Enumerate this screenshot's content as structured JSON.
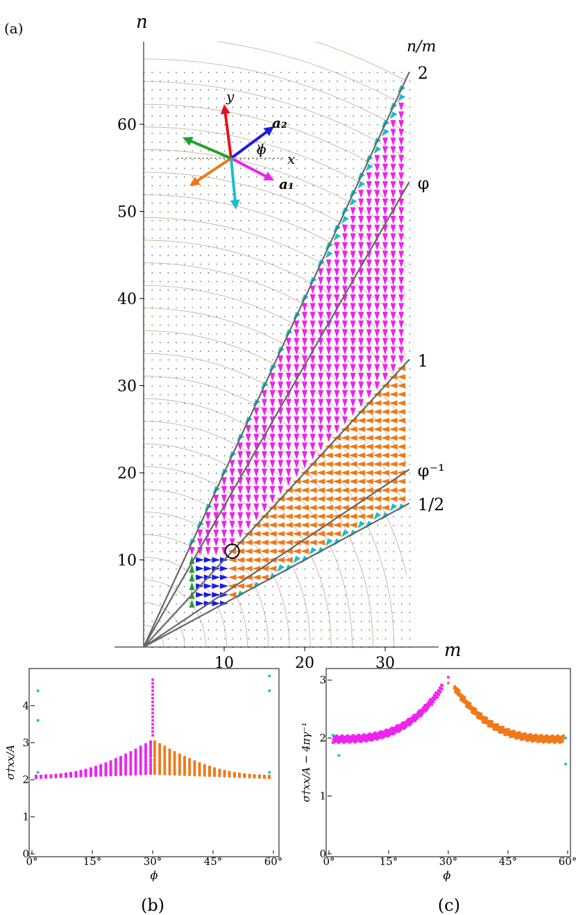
{
  "panels": {
    "a": {
      "label": "(a)",
      "xlabel": "m",
      "ylabel": "n",
      "x_ticks": [
        "10",
        "20",
        "30"
      ],
      "y_ticks": [
        "10",
        "20",
        "30",
        "40",
        "50",
        "60"
      ],
      "lines": [
        {
          "label": "2",
          "slope": 2
        },
        {
          "label": "φ",
          "slope": 1.618
        },
        {
          "label": "1",
          "slope": 1
        },
        {
          "label": "φ⁻¹",
          "slope": 0.618
        },
        {
          "label": "1/2",
          "slope": 0.5
        }
      ],
      "lines_header": "n/m",
      "marked_point": {
        "m": 11,
        "n": 11
      },
      "inset": {
        "labels": {
          "y": "y",
          "x": "x",
          "a2": "a₂",
          "a1": "a₁",
          "phi": "ϕ"
        },
        "arrow_colors": {
          "red": "#e8101a",
          "blue": "#1a1ae8",
          "magenta": "#ee22ee",
          "cyan": "#18c0c8",
          "orange": "#f07818",
          "green": "#22a02a"
        }
      }
    },
    "b": {
      "label": "(b)",
      "xlabel": "ϕ",
      "ylabel": "σ†xx/A",
      "x_ticks": [
        "0°",
        "15°",
        "30°",
        "45°",
        "60°"
      ],
      "y_ticks": [
        "0",
        "1",
        "2",
        "3",
        "4"
      ]
    },
    "c": {
      "label": "(c)",
      "xlabel": "ϕ",
      "ylabel": "σ†xx/A − 4πγ⁻¹",
      "x_ticks": [
        "0°",
        "15°",
        "30°",
        "45°",
        "60°"
      ],
      "y_ticks": [
        "0",
        "1",
        "2",
        "3"
      ]
    }
  },
  "chart_data": [
    {
      "type": "scatter",
      "panel": "a",
      "xlabel": "m",
      "ylabel": "n",
      "xlim": [
        0,
        33
      ],
      "ylim": [
        0,
        66
      ],
      "series": [
        {
          "name": "",
          "color": "#ee22ee",
          "region": "1 < n/m < 2",
          "glyph": "down-arrow"
        },
        {
          "name": "",
          "color": "#f07818",
          "region": "1/2 < n/m < 1",
          "glyph": "left-arrow"
        },
        {
          "name": "",
          "color": "#18c0c8",
          "region": "n/m = 2 and n/m = 1/2",
          "glyph": "diagonal-arrow"
        },
        {
          "name": "",
          "color": "#1a1ae8",
          "region": "m < 11",
          "glyph": "right-arrow"
        },
        {
          "name": "",
          "color": "#22a02a",
          "region": "m = 6",
          "glyph": "up-arrow"
        }
      ]
    },
    {
      "type": "scatter",
      "panel": "b",
      "xlabel": "ϕ",
      "ylabel": "σ†xx/A",
      "xlim": [
        0,
        60
      ],
      "ylim": [
        0,
        5
      ],
      "series": [
        {
          "name": "",
          "color": "#ee22ee",
          "phi_range": [
            1,
            30
          ]
        },
        {
          "name": "",
          "color": "#f07818",
          "phi_range": [
            30,
            59
          ]
        },
        {
          "name": "",
          "color": "#18c0c8",
          "phi": [
            1,
            59
          ]
        }
      ]
    },
    {
      "type": "scatter",
      "panel": "c",
      "xlabel": "ϕ",
      "ylabel": "σ†xx/A − 4πγ⁻¹",
      "xlim": [
        0,
        60
      ],
      "ylim": [
        0,
        3.2
      ],
      "series": [
        {
          "name": "",
          "color": "#ee22ee",
          "phi_range": [
            1,
            29
          ]
        },
        {
          "name": "",
          "color": "#f07818",
          "phi_range": [
            31,
            59
          ]
        },
        {
          "name": "",
          "color": "#18c0c8",
          "phi": [
            1,
            59
          ]
        }
      ]
    }
  ]
}
